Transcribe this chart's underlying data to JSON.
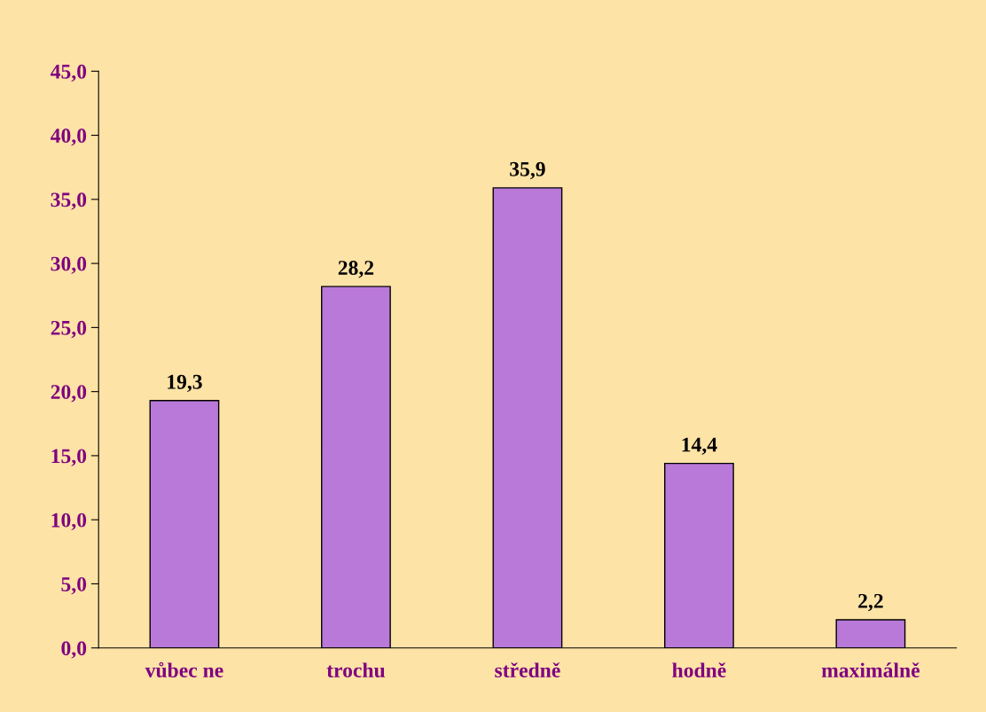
{
  "chart_data": {
    "type": "bar",
    "categories": [
      "vůbec ne",
      "trochu",
      "středně",
      "hodně",
      "maximálně"
    ],
    "values": [
      19.3,
      28.2,
      35.9,
      14.4,
      2.2
    ],
    "value_labels": [
      "19,3",
      "28,2",
      "35,9",
      "14,4",
      "2,2"
    ],
    "color": "#b879d8",
    "ylim": [
      0,
      45
    ],
    "yticks": [
      {
        "value": 0,
        "label": "0,0"
      },
      {
        "value": 5,
        "label": "5,0"
      },
      {
        "value": 10,
        "label": "10,0"
      },
      {
        "value": 15,
        "label": "15,0"
      },
      {
        "value": 20,
        "label": "20,0"
      },
      {
        "value": 25,
        "label": "25,0"
      },
      {
        "value": 30,
        "label": "30,0"
      },
      {
        "value": 35,
        "label": "35,0"
      },
      {
        "value": 40,
        "label": "40,0"
      },
      {
        "value": 45,
        "label": "45,0"
      }
    ],
    "grid": false
  }
}
